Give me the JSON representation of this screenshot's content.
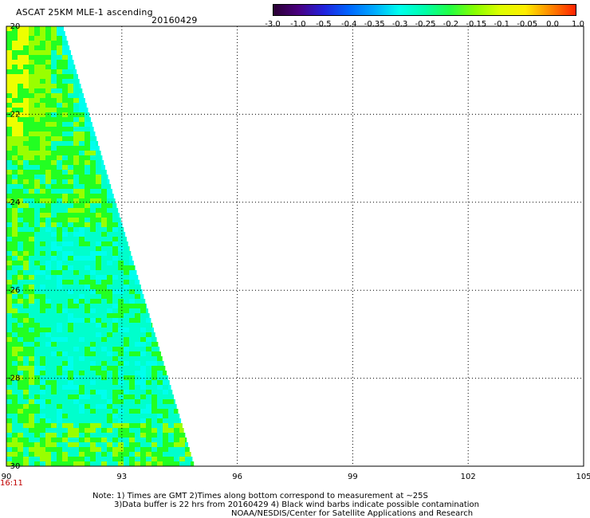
{
  "header": {
    "title": "ASCAT 25KM MLE-1 ascending",
    "date": "20160429"
  },
  "colorbar": {
    "labels": [
      "-3.0",
      "-1.0",
      "-0.5",
      "-0.4",
      "-0.35",
      "-0.3",
      "-0.25",
      "-0.2",
      "-0.15",
      "-0.1",
      "-0.05",
      "0.0",
      "1.0"
    ],
    "colors": [
      "#2a0033",
      "#4a0080",
      "#2222dd",
      "#0066ff",
      "#00aaff",
      "#00ffee",
      "#00ffaa",
      "#22ff44",
      "#88ff00",
      "#ddff00",
      "#ffee00",
      "#ff8800",
      "#ff2200"
    ]
  },
  "map": {
    "lon_range": [
      90,
      105
    ],
    "lat_range": [
      -20,
      -30
    ],
    "lon_ticks": [
      "90",
      "93",
      "96",
      "99",
      "102",
      "105"
    ],
    "lat_ticks": [
      "-20",
      "-22",
      "-24",
      "-26",
      "-28",
      "-30"
    ],
    "swath_colors": {
      "green": "#22ff22",
      "yellowgreen": "#99ff00",
      "yellow": "#eeff00",
      "aqua": "#00ffcc",
      "cyan": "#00ffee"
    }
  },
  "footer": {
    "time_label": "16:11",
    "note_line1": "Note: 1) Times are GMT 2)Times along bottom correspond to measurement at ~25S",
    "note_line2": "3)Data buffer is 22 hrs from 20160429 4) Black wind barbs indicate possible contamination",
    "note_line3": "NOAA/NESDIS/Center for Satellite Applications and Research"
  }
}
